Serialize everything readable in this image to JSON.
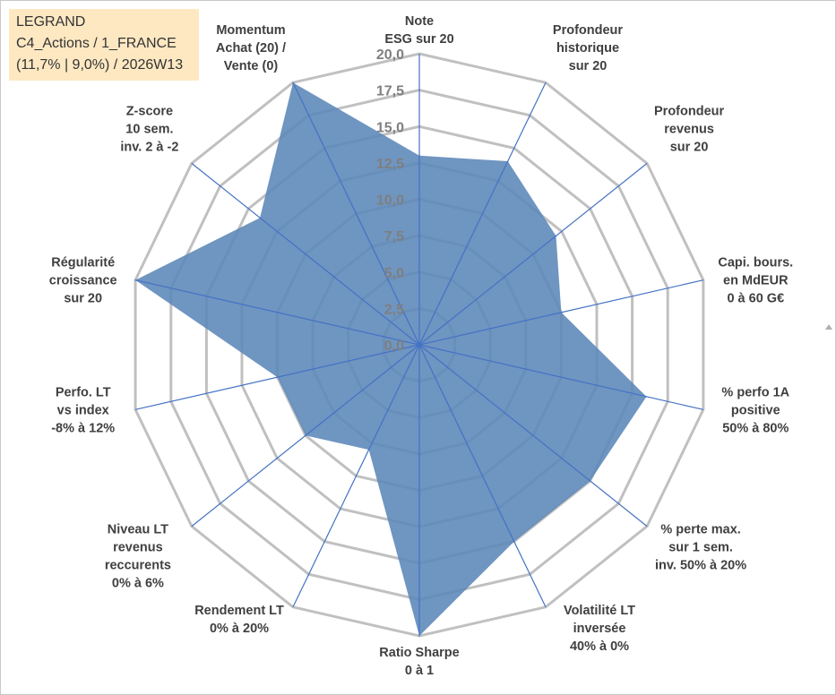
{
  "info": {
    "line1": "LEGRAND",
    "line2": "C4_Actions / 1_FRANCE",
    "line3": "(11,7% | 9,0%) / 2026W13"
  },
  "chart_data": {
    "type": "radar",
    "r_min": 0,
    "r_max": 20,
    "r_step": 2.5,
    "tick_labels": [
      "0,0",
      "2,5",
      "5,0",
      "7,5",
      "10,0",
      "12,5",
      "15,0",
      "17,5",
      "20,0"
    ],
    "axes": [
      {
        "label": [
          "Note",
          "ESG sur 20"
        ],
        "value": 13.0
      },
      {
        "label": [
          "Profondeur",
          "historique",
          "sur 20"
        ],
        "value": 14.0
      },
      {
        "label": [
          "Profondeur",
          "revenus",
          "sur 20"
        ],
        "value": 12.0
      },
      {
        "label": [
          "Capi. bours.",
          "en MdEUR",
          "0 à 60 G€"
        ],
        "value": 10.0
      },
      {
        "label": [
          "% perfo 1A",
          "positive",
          "50% à 80%"
        ],
        "value": 16.0
      },
      {
        "label": [
          "% perte max.",
          "sur 1 sem.",
          "inv. 50% à 20%"
        ],
        "value": 15.0
      },
      {
        "label": [
          "Volatilité LT",
          "inversée",
          "40% à 0%"
        ],
        "value": 15.0
      },
      {
        "label": [
          "Ratio Sharpe",
          "0 à 1"
        ],
        "value": 20.0
      },
      {
        "label": [
          "Rendement LT",
          "0% à 20%"
        ],
        "value": 8.0
      },
      {
        "label": [
          "Niveau LT",
          "revenus",
          "reccurents",
          "0% à 6%"
        ],
        "value": 10.0
      },
      {
        "label": [
          "Perfo. LT",
          "vs index",
          "-8% à 12%"
        ],
        "value": 10.0
      },
      {
        "label": [
          "Régularité",
          "croissance",
          "sur 20"
        ],
        "value": 20.0
      },
      {
        "label": [
          "Z-score",
          "10 sem.",
          "inv. 2 à -2"
        ],
        "value": 14.0
      },
      {
        "label": [
          "Momentum",
          "Achat (20) /",
          "Vente (0)"
        ],
        "value": 20.0
      }
    ],
    "series": [
      {
        "values": [
          13.0,
          14.0,
          12.0,
          10.0,
          16.0,
          15.0,
          15.0,
          20.0,
          8.0,
          10.0,
          10.0,
          20.0,
          14.0,
          20.0
        ]
      }
    ],
    "colors": {
      "fill": "#5b86b8",
      "grid": "#c0c0c0",
      "spoke": "#4472c4",
      "label": "#404040",
      "tick": "#7f7f7f"
    }
  }
}
